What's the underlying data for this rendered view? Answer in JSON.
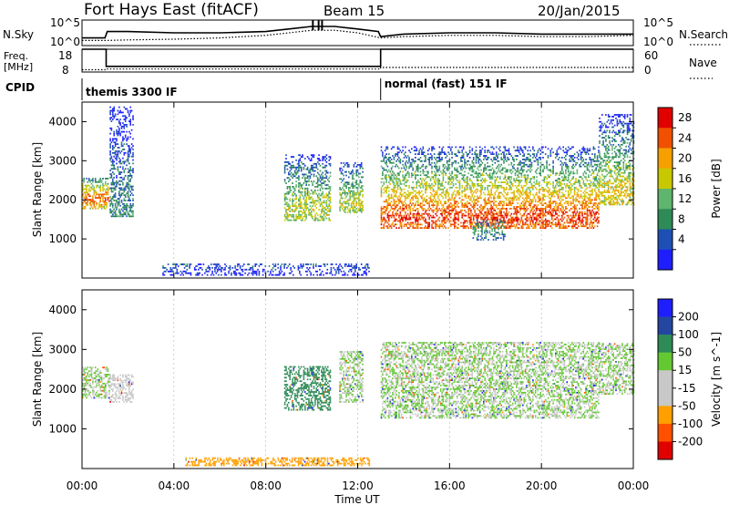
{
  "header": {
    "title": "Fort Hays East (fitACF)",
    "beam": "Beam 15",
    "date": "20/Jan/2015"
  },
  "noise_panel": {
    "left_label": "N.Sky",
    "right_label": "N.Search",
    "left_ticks": [
      "10^5",
      "10^0"
    ],
    "right_ticks": [
      "10^5",
      "10^0"
    ]
  },
  "freq_panel": {
    "left_label_1": "Freq.",
    "left_label_2": "[MHz]",
    "right_label": "Nave",
    "left_ticks": [
      "18",
      "8"
    ],
    "right_ticks": [
      "60",
      "0"
    ]
  },
  "cpid": {
    "label": "CPID",
    "modes": [
      {
        "name": "themis 3300 IF",
        "start_hour": 0
      },
      {
        "name": "normal (fast) 151 IF",
        "start_hour": 13
      }
    ]
  },
  "colors": {
    "frame": "#000000",
    "power_scale": [
      "#1e1eff",
      "#1e50b4",
      "#2e8b57",
      "#5fb46e",
      "#c8c800",
      "#f5a000",
      "#f05000",
      "#e00000"
    ],
    "velocity_scale": [
      "#e00000",
      "#ff5000",
      "#ffa000",
      "#c8c8c8",
      "#c8c8c8",
      "#64c832",
      "#2e8b57",
      "#2346a0",
      "#1e1eff"
    ]
  },
  "power_colorbar": {
    "label": "Power [dB]",
    "ticks": [
      "28",
      "24",
      "20",
      "16",
      "12",
      "8",
      "4"
    ]
  },
  "velocity_colorbar": {
    "label": "Velocity [m s^-1]",
    "ticks": [
      "200",
      "100",
      "50",
      "15",
      "-15",
      "-50",
      "-100",
      "-200"
    ]
  },
  "range_axis": {
    "label": "Slant Range [km]",
    "ticks": [
      "4000",
      "3000",
      "2000",
      "1000"
    ]
  },
  "time_axis": {
    "label": "Time UT",
    "ticks": [
      "00:00",
      "04:00",
      "08:00",
      "12:00",
      "16:00",
      "20:00",
      "00:00"
    ]
  },
  "chart_data": [
    {
      "type": "line",
      "panel": "noise",
      "x_unit": "hour UT",
      "xlim": [
        0,
        24
      ],
      "series": [
        {
          "name": "N.Sky",
          "x": [
            0,
            0.5,
            1,
            1.1,
            2,
            4,
            6,
            8,
            9,
            10,
            11,
            12,
            12.9,
            13,
            14,
            16,
            18,
            20,
            22,
            24
          ],
          "y": [
            0.3,
            0.3,
            0.3,
            0.55,
            0.55,
            0.5,
            0.5,
            0.55,
            0.65,
            0.75,
            0.75,
            0.65,
            0.55,
            0.35,
            0.45,
            0.5,
            0.5,
            0.45,
            0.45,
            0.45
          ]
        },
        {
          "name": "N.Search",
          "x": [
            0,
            1,
            2,
            4,
            6,
            8,
            9,
            10,
            11,
            12,
            13,
            14,
            16,
            18,
            20,
            22,
            24
          ],
          "y": [
            0.2,
            0.2,
            0.22,
            0.25,
            0.3,
            0.4,
            0.5,
            0.6,
            0.6,
            0.5,
            0.3,
            0.35,
            0.4,
            0.4,
            0.35,
            0.35,
            0.4
          ]
        }
      ]
    },
    {
      "type": "line",
      "panel": "frequency",
      "x_unit": "hour UT",
      "xlim": [
        0,
        24
      ],
      "series": [
        {
          "name": "Freq.",
          "x": [
            0,
            1.05,
            1.05,
            13,
            13,
            24
          ],
          "y": [
            18,
            18,
            10.5,
            10.5,
            18,
            18
          ]
        },
        {
          "name": "Nave",
          "x": [
            0,
            1,
            1,
            13,
            13,
            24
          ],
          "y": [
            6,
            6,
            8,
            8,
            12,
            12
          ]
        }
      ]
    },
    {
      "type": "heatmap",
      "panel": "power",
      "quantity": "Power [dB]",
      "x_unit": "hour UT",
      "y_unit": "km",
      "xlim": [
        0,
        24
      ],
      "ylim": [
        0,
        4500
      ],
      "clim": [
        0,
        32
      ],
      "echo_regions": [
        {
          "hours": [
            0.0,
            1.2
          ],
          "range_km": [
            1800,
            2600
          ],
          "peak_db": 26
        },
        {
          "hours": [
            1.2,
            2.2
          ],
          "range_km": [
            1600,
            4400
          ],
          "peak_db": 10
        },
        {
          "hours": [
            8.8,
            10.8
          ],
          "range_km": [
            1500,
            3200
          ],
          "peak_db": 18
        },
        {
          "hours": [
            11.2,
            12.2
          ],
          "range_km": [
            1700,
            3000
          ],
          "peak_db": 18
        },
        {
          "hours": [
            13.0,
            22.5
          ],
          "range_km": [
            1300,
            3400
          ],
          "peak_db": 28
        },
        {
          "hours": [
            22.5,
            24.0
          ],
          "range_km": [
            1900,
            4200
          ],
          "peak_db": 20
        },
        {
          "hours": [
            17.0,
            18.4
          ],
          "range_km": [
            1000,
            1500
          ],
          "peak_db": 12
        },
        {
          "hours": [
            3.5,
            12.5
          ],
          "range_km": [
            100,
            400
          ],
          "peak_db": 6
        }
      ]
    },
    {
      "type": "heatmap",
      "panel": "velocity",
      "quantity": "Velocity [m s^-1]",
      "x_unit": "hour UT",
      "y_unit": "km",
      "xlim": [
        0,
        24
      ],
      "ylim": [
        0,
        4500
      ],
      "clim": [
        -200,
        200
      ],
      "echo_regions": [
        {
          "hours": [
            0.0,
            1.2
          ],
          "range_km": [
            1800,
            2600
          ],
          "mean_velocity": 0
        },
        {
          "hours": [
            1.2,
            2.2
          ],
          "range_km": [
            1700,
            2400
          ],
          "mean_velocity": -40
        },
        {
          "hours": [
            8.8,
            10.8
          ],
          "range_km": [
            1500,
            2600
          ],
          "mean_velocity": 30
        },
        {
          "hours": [
            11.2,
            12.2
          ],
          "range_km": [
            1700,
            3000
          ],
          "mean_velocity": 0
        },
        {
          "hours": [
            13.0,
            22.5
          ],
          "range_km": [
            1300,
            3200
          ],
          "mean_velocity": 0
        },
        {
          "hours": [
            22.5,
            24.0
          ],
          "range_km": [
            1900,
            3200
          ],
          "mean_velocity": 0
        },
        {
          "hours": [
            4.5,
            12.5
          ],
          "range_km": [
            100,
            300
          ],
          "mean_velocity": -60
        }
      ]
    }
  ]
}
